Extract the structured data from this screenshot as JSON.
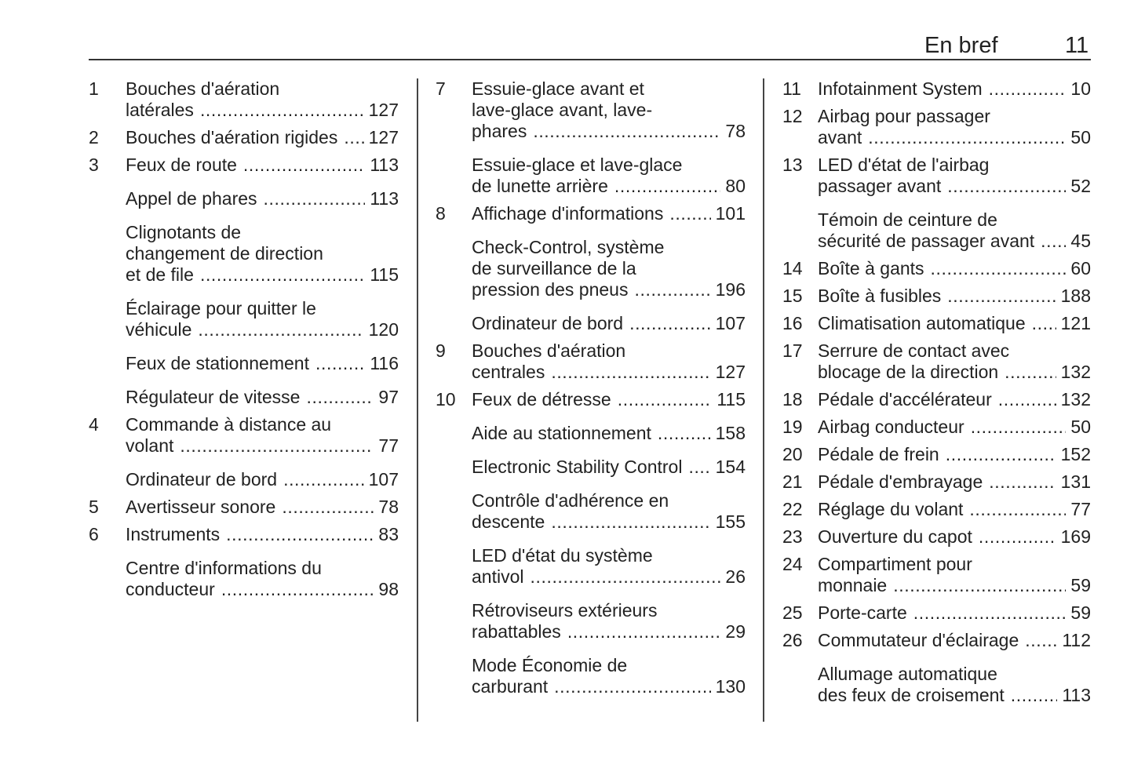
{
  "header": {
    "section": "En bref",
    "page_number": "11"
  },
  "columns": [
    {
      "entries": [
        {
          "num": "1",
          "lines": [
            "Bouches d'aération",
            "latérales"
          ],
          "page": "127"
        },
        {
          "num": "2",
          "lines": [
            "Bouches d'aération rigides"
          ],
          "page": "127"
        },
        {
          "num": "3",
          "lines": [
            "Feux de route"
          ],
          "page": "113"
        },
        {
          "num": "",
          "lines": [
            "Appel de phares"
          ],
          "page": "113"
        },
        {
          "num": "",
          "lines": [
            "Clignotants de",
            "changement de direction",
            "et de file"
          ],
          "page": "115"
        },
        {
          "num": "",
          "lines": [
            "Éclairage pour quitter le",
            "véhicule"
          ],
          "page": "120"
        },
        {
          "num": "",
          "lines": [
            "Feux de stationnement"
          ],
          "page": "116"
        },
        {
          "num": "",
          "lines": [
            "Régulateur de vitesse"
          ],
          "page": "97"
        },
        {
          "num": "4",
          "lines": [
            "Commande à distance au",
            "volant"
          ],
          "page": "77"
        },
        {
          "num": "",
          "lines": [
            "Ordinateur de bord"
          ],
          "page": "107"
        },
        {
          "num": "5",
          "lines": [
            "Avertisseur sonore"
          ],
          "page": "78"
        },
        {
          "num": "6",
          "lines": [
            "Instruments"
          ],
          "page": "83"
        },
        {
          "num": "",
          "lines": [
            "Centre d'informations du",
            "conducteur"
          ],
          "page": "98"
        }
      ]
    },
    {
      "entries": [
        {
          "num": "7",
          "lines": [
            "Essuie-glace avant et",
            "lave-glace avant, lave-",
            "phares"
          ],
          "page": "78"
        },
        {
          "num": "",
          "lines": [
            "Essuie-glace et lave-glace",
            "de lunette arrière"
          ],
          "page": "80"
        },
        {
          "num": "8",
          "lines": [
            "Affichage d'informations"
          ],
          "page": "101"
        },
        {
          "num": "",
          "lines": [
            "Check-Control, système",
            "de surveillance de la",
            "pression des pneus"
          ],
          "page": "196"
        },
        {
          "num": "",
          "lines": [
            "Ordinateur de bord"
          ],
          "page": "107"
        },
        {
          "num": "9",
          "lines": [
            "Bouches d'aération",
            "centrales"
          ],
          "page": "127"
        },
        {
          "num": "10",
          "lines": [
            "Feux de détresse"
          ],
          "page": "115"
        },
        {
          "num": "",
          "lines": [
            "Aide au stationnement"
          ],
          "page": "158"
        },
        {
          "num": "",
          "lines": [
            "Electronic Stability Control"
          ],
          "page": "154"
        },
        {
          "num": "",
          "lines": [
            "Contrôle d'adhérence en",
            "descente"
          ],
          "page": "155"
        },
        {
          "num": "",
          "lines": [
            "LED d'état du système",
            "antivol"
          ],
          "page": "26"
        },
        {
          "num": "",
          "lines": [
            "Rétroviseurs extérieurs",
            "rabattables"
          ],
          "page": "29"
        },
        {
          "num": "",
          "lines": [
            "Mode Économie de",
            "carburant"
          ],
          "page": "130"
        }
      ]
    },
    {
      "entries": [
        {
          "num": "11",
          "lines": [
            "Infotainment System"
          ],
          "page": "10"
        },
        {
          "num": "12",
          "lines": [
            "Airbag pour passager",
            "avant"
          ],
          "page": "50"
        },
        {
          "num": "13",
          "lines": [
            "LED d'état de l'airbag",
            "passager avant"
          ],
          "page": "52"
        },
        {
          "num": "",
          "lines": [
            "Témoin de ceinture de",
            "sécurité de passager avant"
          ],
          "page": "45"
        },
        {
          "num": "14",
          "lines": [
            "Boîte à gants"
          ],
          "page": "60"
        },
        {
          "num": "15",
          "lines": [
            "Boîte à fusibles"
          ],
          "page": "188"
        },
        {
          "num": "16",
          "lines": [
            "Climatisation automatique"
          ],
          "page": "121"
        },
        {
          "num": "17",
          "lines": [
            "Serrure de contact avec",
            "blocage de la direction"
          ],
          "page": "132"
        },
        {
          "num": "18",
          "lines": [
            "Pédale d'accélérateur"
          ],
          "page": "132"
        },
        {
          "num": "19",
          "lines": [
            "Airbag conducteur"
          ],
          "page": "50"
        },
        {
          "num": "20",
          "lines": [
            "Pédale de frein"
          ],
          "page": "152"
        },
        {
          "num": "21",
          "lines": [
            "Pédale d'embrayage"
          ],
          "page": "131"
        },
        {
          "num": "22",
          "lines": [
            "Réglage du volant"
          ],
          "page": "77"
        },
        {
          "num": "23",
          "lines": [
            "Ouverture du capot"
          ],
          "page": "169"
        },
        {
          "num": "24",
          "lines": [
            "Compartiment pour",
            "monnaie"
          ],
          "page": "59"
        },
        {
          "num": "25",
          "lines": [
            "Porte-carte"
          ],
          "page": "59"
        },
        {
          "num": "26",
          "lines": [
            "Commutateur d'éclairage"
          ],
          "page": "112"
        },
        {
          "num": "",
          "lines": [
            "Allumage automatique",
            "des feux de croisement"
          ],
          "page": "113"
        }
      ]
    }
  ]
}
